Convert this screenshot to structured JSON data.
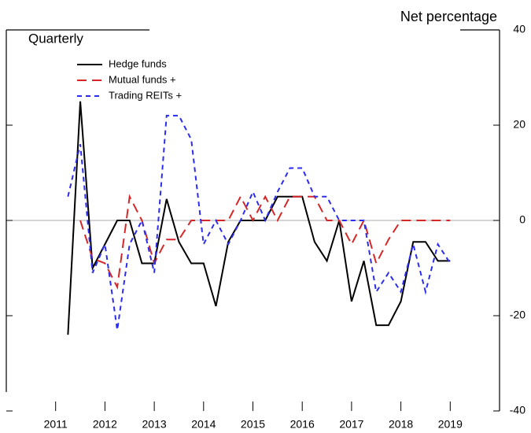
{
  "chart_data": {
    "type": "line",
    "title": "Net percentage",
    "subtitle": "Quarterly",
    "x": [
      2011.75,
      2012,
      2012.25,
      2012.5,
      2012.75,
      2013,
      2013.25,
      2013.5,
      2013.75,
      2014,
      2014.25,
      2014.5,
      2014.75,
      2015,
      2015.25,
      2015.5,
      2015.75,
      2016,
      2016.25,
      2016.5,
      2016.75,
      2017,
      2017.25,
      2017.5,
      2017.75,
      2018,
      2018.25,
      2018.5,
      2018.75,
      2019,
      2019.25,
      2019.5
    ],
    "series": [
      {
        "name": "Hedge funds",
        "color": "#000000",
        "dash": "none",
        "values": [
          -24,
          25,
          -10,
          -5,
          0,
          0,
          -9,
          -9,
          4.5,
          -4.5,
          -9,
          -9,
          -18,
          -4.5,
          0,
          0,
          0,
          5,
          5,
          5,
          -4.5,
          -8.5,
          0,
          -17,
          -8.5,
          -22,
          -22,
          -17,
          -4.5,
          -4.5,
          -8.5,
          -8.5
        ]
      },
      {
        "name": "Mutual funds +",
        "color": "#d62728",
        "dash": "12 7",
        "values": [
          null,
          0,
          -8,
          -9,
          -14,
          5,
          0,
          -9,
          -4,
          -4,
          0,
          0,
          0,
          0,
          5,
          0,
          5,
          0,
          5,
          5,
          5,
          0,
          0,
          -5,
          0,
          -9,
          -4,
          0,
          0,
          0,
          0,
          0
        ]
      },
      {
        "name": "Trading REITs +",
        "color": "#2c2cf0",
        "dash": "6 5",
        "values": [
          5,
          16,
          -11,
          -5,
          -23,
          -5,
          0,
          -11,
          22,
          22,
          17,
          -5,
          0,
          -5,
          0,
          6,
          0,
          6,
          11,
          11,
          5,
          5,
          0,
          0,
          0,
          -15,
          -11,
          -15,
          -5,
          -15,
          -5,
          -9
        ]
      }
    ],
    "xlim": [
      2010.5,
      2020.5
    ],
    "xticks": [
      {
        "value": 2011.5,
        "label": "2011"
      },
      {
        "value": 2012.5,
        "label": "2012"
      },
      {
        "value": 2013.5,
        "label": "2013"
      },
      {
        "value": 2014.5,
        "label": "2014"
      },
      {
        "value": 2015.5,
        "label": "2015"
      },
      {
        "value": 2016.5,
        "label": "2016"
      },
      {
        "value": 2017.5,
        "label": "2017"
      },
      {
        "value": 2018.5,
        "label": "2018"
      },
      {
        "value": 2019.5,
        "label": "2019"
      }
    ],
    "ylim": [
      -40,
      40
    ],
    "yticks": [
      -40,
      -20,
      0,
      20,
      40
    ],
    "legend": "upper left"
  }
}
